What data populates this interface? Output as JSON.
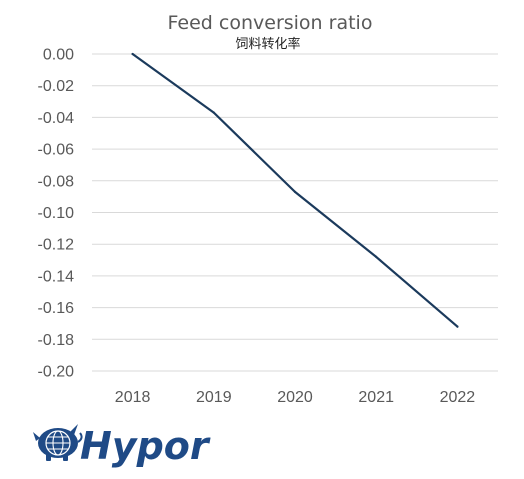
{
  "chart_data": {
    "type": "line",
    "title": "Feed conversion ratio",
    "subtitle": "饲料转化率",
    "x": [
      "2018",
      "2019",
      "2020",
      "2021",
      "2022"
    ],
    "series": [
      {
        "values": [
          0.0,
          -0.037,
          -0.087,
          -0.128,
          -0.172
        ]
      }
    ],
    "ylim": [
      -0.2,
      0.0
    ],
    "yticks": [
      0.0,
      -0.02,
      -0.04,
      -0.06,
      -0.08,
      -0.1,
      -0.12,
      -0.14,
      -0.16,
      -0.18,
      -0.2
    ],
    "ytick_labels": [
      "0.00",
      "-0.02",
      "-0.04",
      "-0.06",
      "-0.08",
      "-0.10",
      "-0.12",
      "-0.14",
      "-0.16",
      "-0.18",
      "-0.20"
    ],
    "grid": true,
    "line_color": "#1b3a5c"
  },
  "logo": {
    "text": "Hypor",
    "icon": "globe-pig-icon",
    "color": "#1f4a86"
  }
}
